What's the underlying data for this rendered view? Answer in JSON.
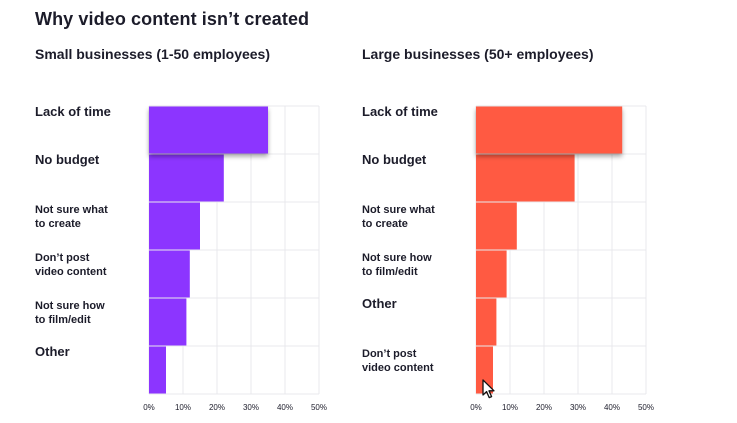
{
  "title": "Why video content isn’t created",
  "colors": {
    "small": "#8c35ff",
    "large": "#ff5a42",
    "grid": "#e9e9ec",
    "text": "#1c1c2a"
  },
  "chart_data": [
    {
      "type": "bar",
      "orientation": "horizontal",
      "title": "Small businesses (1-50 employees)",
      "categories": [
        "Lack of time",
        "No budget",
        "Not sure what to create",
        "Don’t post video content",
        "Not sure how to film/edit",
        "Other"
      ],
      "category_lines": [
        [
          "Lack of time"
        ],
        [
          "No budget"
        ],
        [
          "Not sure what",
          "to create"
        ],
        [
          "Don’t post",
          "video content"
        ],
        [
          "Not sure how",
          "to film/edit"
        ],
        [
          "Other"
        ]
      ],
      "values": [
        35,
        22,
        15,
        12,
        11,
        5
      ],
      "xlim": [
        0,
        50
      ],
      "xticks": [
        "0%",
        "10%",
        "20%",
        "30%",
        "40%",
        "50%"
      ],
      "highlighted_category": "Lack of time",
      "color": "#8c35ff"
    },
    {
      "type": "bar",
      "orientation": "horizontal",
      "title": "Large businesses (50+ employees)",
      "categories": [
        "Lack of time",
        "No budget",
        "Not sure what to create",
        "Not sure how to film/edit",
        "Other",
        "Don’t post video content"
      ],
      "category_lines": [
        [
          "Lack of time"
        ],
        [
          "No budget"
        ],
        [
          "Not sure what",
          "to create"
        ],
        [
          "Not sure how",
          "to film/edit"
        ],
        [
          "Other"
        ],
        [
          "Don’t post",
          "video content"
        ]
      ],
      "values": [
        43,
        29,
        12,
        9,
        6,
        5
      ],
      "xlim": [
        0,
        50
      ],
      "xticks": [
        "0%",
        "10%",
        "20%",
        "30%",
        "40%",
        "50%"
      ],
      "highlighted_category": "Lack of time",
      "color": "#ff5a42"
    }
  ]
}
